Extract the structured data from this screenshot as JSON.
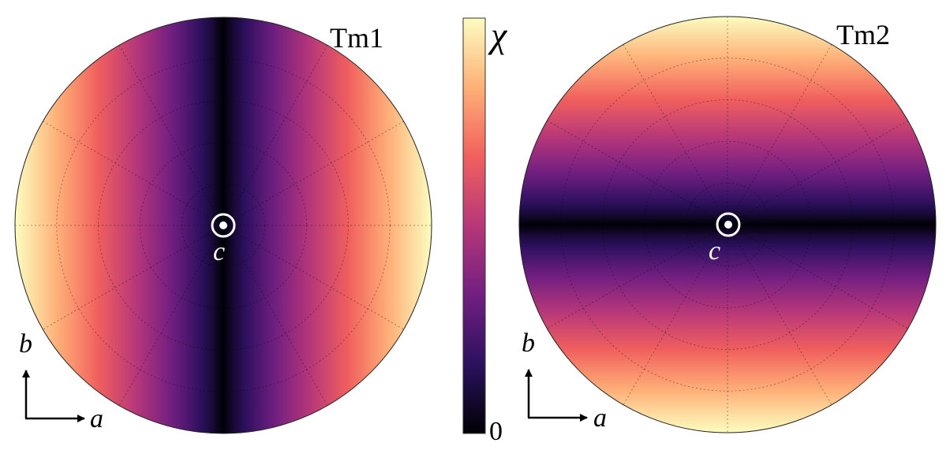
{
  "colorbar": {
    "symbol": "χ",
    "min_label": "0",
    "colormap": "magma",
    "stops": [
      "#000004",
      "#2c115f",
      "#721f81",
      "#b73779",
      "#f1605d",
      "#feb078",
      "#fcfdbf"
    ]
  },
  "panels": [
    {
      "title": "Tm1",
      "modulation_axis": "a",
      "center_label": "c",
      "axes": {
        "vertical": "b",
        "horizontal": "a"
      }
    },
    {
      "title": "Tm2",
      "modulation_axis": "b",
      "center_label": "c",
      "axes": {
        "vertical": "b",
        "horizontal": "a"
      }
    }
  ]
}
